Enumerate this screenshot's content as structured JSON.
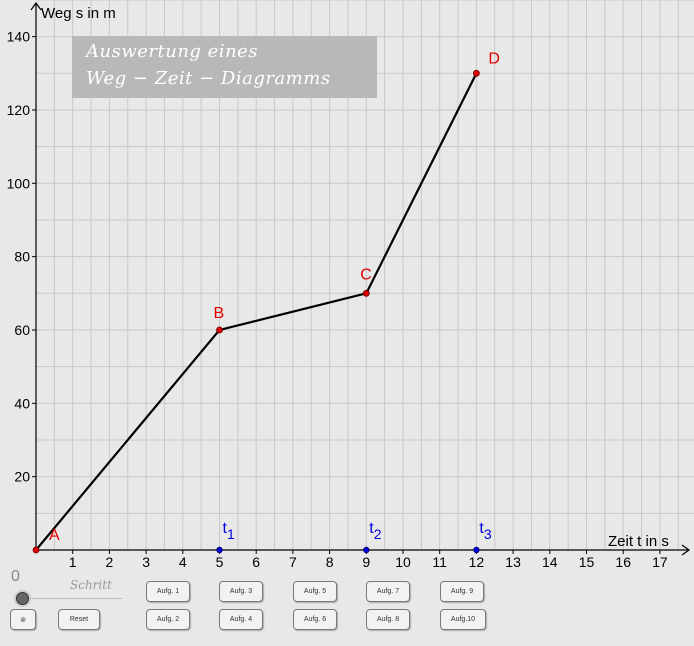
{
  "title": {
    "line1": "Auswertung eines",
    "line2": "Weg − Zeit − Diagramms"
  },
  "chart_data": {
    "type": "line",
    "xlabel": "Zeit t in s",
    "ylabel": "Weg s in m",
    "xlim": [
      0,
      17.6
    ],
    "ylim": [
      0,
      142
    ],
    "x_ticks": [
      1,
      2,
      3,
      4,
      5,
      6,
      7,
      8,
      9,
      10,
      11,
      12,
      13,
      14,
      15,
      16,
      17
    ],
    "y_ticks": [
      20,
      40,
      60,
      80,
      100,
      120,
      140
    ],
    "grid": true,
    "points": [
      {
        "label": "A",
        "x": 0,
        "y": 0
      },
      {
        "label": "B",
        "x": 5,
        "y": 60
      },
      {
        "label": "C",
        "x": 9,
        "y": 70
      },
      {
        "label": "D",
        "x": 12,
        "y": 130
      }
    ],
    "time_markers": [
      {
        "label": "t",
        "sub": "1",
        "x": 5
      },
      {
        "label": "t",
        "sub": "2",
        "x": 9
      },
      {
        "label": "t",
        "sub": "3",
        "x": 12
      }
    ],
    "colors": {
      "line": "#000000",
      "points": "#e00000",
      "markers": "#0000dd",
      "grid": "#c8c8c8"
    }
  },
  "slider": {
    "value": "0",
    "label": "Schritt"
  },
  "buttons": {
    "toggle": "⊚",
    "reset": "Reset",
    "aufg1": "Aufg. 1",
    "aufg2": "Aufg. 2",
    "aufg3": "Aufg. 3",
    "aufg4": "Aufg. 4",
    "aufg5": "Aufg. 5",
    "aufg6": "Aufg. 6",
    "aufg7": "Aufg. 7",
    "aufg8": "Aufg. 8",
    "aufg9": "Aufg. 9",
    "aufg10": "Aufg.10"
  }
}
